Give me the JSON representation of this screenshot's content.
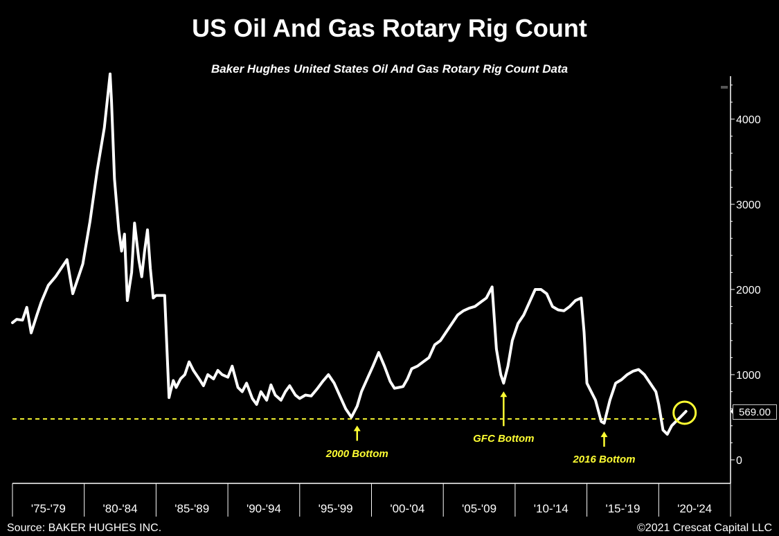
{
  "header": {
    "title": "US Oil And Gas Rotary Rig Count",
    "subtitle": "Baker Hughes United States Oil And Gas Rotary Rig Count Data"
  },
  "footer": {
    "source": "Source: BAKER HUGHES INC.",
    "copyright": "©2021 Crescat Capital LLC"
  },
  "colors": {
    "background": "#000000",
    "line": "#ffffff",
    "accent": "#ffff33"
  },
  "chart_data": {
    "type": "line",
    "title": "US Oil And Gas Rotary Rig Count",
    "subtitle": "Baker Hughes United States Oil And Gas Rotary Rig Count Data",
    "xlabel": "",
    "ylabel": "",
    "x_categories": [
      "'75-'79",
      "'80-'84",
      "'85-'89",
      "'90-'94",
      "'95-'99",
      "'00-'04",
      "'05-'09",
      "'10-'14",
      "'15-'19",
      "'20-'24"
    ],
    "xlim": [
      1975,
      2025
    ],
    "ylim": [
      0,
      4500
    ],
    "y_ticks": [
      0,
      1000,
      2000,
      3000,
      4000
    ],
    "y_tick_labels": [
      "0",
      "1000",
      "2000",
      "3000",
      "4000"
    ],
    "grid": false,
    "y_axis_position": "right",
    "last_value": 569,
    "last_value_label": "569.00",
    "series": [
      {
        "name": "",
        "x": [
          1975.0,
          1975.3,
          1975.7,
          1976.0,
          1976.3,
          1976.7,
          1977.0,
          1977.5,
          1978.0,
          1978.4,
          1978.8,
          1979.2,
          1979.5,
          1979.9,
          1980.4,
          1980.9,
          1981.4,
          1981.8,
          1981.9,
          1982.1,
          1982.4,
          1982.6,
          1982.8,
          1983.0,
          1983.3,
          1983.5,
          1983.8,
          1984.0,
          1984.2,
          1984.4,
          1984.6,
          1984.8,
          1985.0,
          1985.3,
          1985.6,
          1985.9,
          1986.0,
          1986.2,
          1986.4,
          1986.7,
          1987.0,
          1987.3,
          1987.6,
          1988.0,
          1988.3,
          1988.6,
          1989.0,
          1989.3,
          1989.6,
          1990.0,
          1990.3,
          1990.7,
          1991.0,
          1991.3,
          1991.7,
          1992.0,
          1992.3,
          1992.7,
          1993.0,
          1993.3,
          1993.7,
          1994.0,
          1994.3,
          1994.7,
          1995.0,
          1995.4,
          1995.8,
          1996.2,
          1996.6,
          1997.0,
          1997.4,
          1997.8,
          1998.2,
          1998.6,
          1999.0,
          1999.3,
          1999.7,
          2000.1,
          2000.5,
          2000.9,
          2001.3,
          2001.6,
          2001.9,
          2002.2,
          2002.5,
          2002.8,
          2003.2,
          2003.6,
          2004.0,
          2004.4,
          2004.8,
          2005.2,
          2005.6,
          2006.0,
          2006.4,
          2006.8,
          2007.2,
          2007.6,
          2008.0,
          2008.4,
          2008.7,
          2009.0,
          2009.2,
          2009.5,
          2009.8,
          2010.2,
          2010.6,
          2011.0,
          2011.4,
          2011.8,
          2012.2,
          2012.6,
          2013.0,
          2013.4,
          2013.8,
          2014.2,
          2014.6,
          2014.8,
          2015.0,
          2015.3,
          2015.6,
          2016.0,
          2016.2,
          2016.6,
          2017.0,
          2017.4,
          2017.8,
          2018.2,
          2018.6,
          2019.0,
          2019.4,
          2019.8,
          2020.0,
          2020.3,
          2020.6,
          2020.9,
          2021.2,
          2021.5,
          2021.9
        ],
        "values": [
          1610,
          1650,
          1640,
          1790,
          1490,
          1700,
          1850,
          2050,
          2150,
          2250,
          2350,
          1950,
          2100,
          2300,
          2800,
          3400,
          3900,
          4530,
          4200,
          3300,
          2700,
          2450,
          2650,
          1870,
          2200,
          2780,
          2350,
          2150,
          2450,
          2700,
          2250,
          1900,
          1930,
          1930,
          1930,
          730,
          800,
          930,
          850,
          950,
          1000,
          1150,
          1050,
          950,
          870,
          1000,
          950,
          1050,
          1000,
          970,
          1100,
          850,
          800,
          900,
          720,
          650,
          800,
          700,
          880,
          760,
          700,
          800,
          870,
          760,
          720,
          760,
          750,
          830,
          920,
          1000,
          900,
          750,
          600,
          500,
          630,
          800,
          950,
          1100,
          1260,
          1100,
          920,
          840,
          850,
          860,
          950,
          1070,
          1100,
          1150,
          1200,
          1350,
          1400,
          1500,
          1600,
          1700,
          1750,
          1780,
          1800,
          1850,
          1900,
          2030,
          1300,
          1000,
          900,
          1100,
          1400,
          1600,
          1700,
          1850,
          2000,
          2000,
          1950,
          1800,
          1760,
          1750,
          1800,
          1870,
          1900,
          1500,
          900,
          800,
          700,
          450,
          430,
          700,
          900,
          940,
          1000,
          1040,
          1060,
          1000,
          900,
          800,
          650,
          350,
          300,
          400,
          450,
          500,
          569
        ]
      }
    ],
    "reference_line": {
      "value": 480,
      "style": "dashed",
      "color": "#ffff33"
    },
    "annotations": [
      {
        "label": "2000 Bottom",
        "x": 1999.0,
        "y": 500
      },
      {
        "label": "GFC Bottom",
        "x": 2009.2,
        "y": 900
      },
      {
        "label": "2016 Bottom",
        "x": 2016.2,
        "y": 430
      }
    ],
    "highlight_circle": {
      "x": 2021.9,
      "y": 569
    }
  }
}
